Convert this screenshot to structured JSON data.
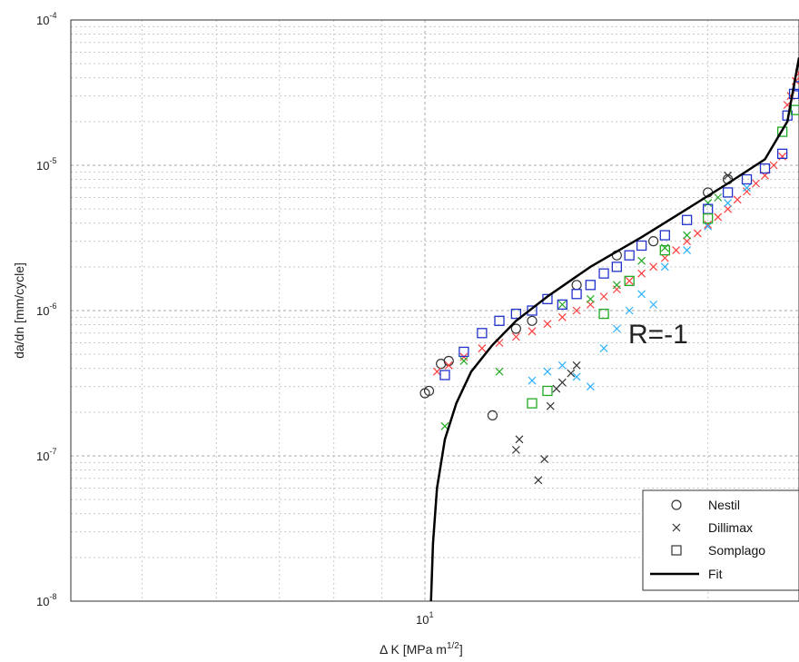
{
  "chart_data": {
    "type": "scatter",
    "title": "",
    "xlabel": "Δ K [MPa m",
    "xlabel_sup": "1/2",
    "xlabel_suffix": "]",
    "ylabel": "da/dn [mm/cycle]",
    "xscale": "log",
    "yscale": "log",
    "xlim": [
      4.2,
      25
    ],
    "ylim": [
      1e-08,
      0.0001
    ],
    "grid": true,
    "legend_position": "bottom-right",
    "x_tick_labels": [
      {
        "value": 10,
        "base": "10",
        "exp": "1"
      }
    ],
    "y_tick_labels": [
      {
        "value": 1e-08,
        "base": "10",
        "exp": "-8"
      },
      {
        "value": 1e-07,
        "base": "10",
        "exp": "-7"
      },
      {
        "value": 1e-06,
        "base": "10",
        "exp": "-6"
      },
      {
        "value": 1e-05,
        "base": "10",
        "exp": "-5"
      },
      {
        "value": 0.0001,
        "base": "10",
        "exp": "-4"
      }
    ],
    "annotation": "R=-1",
    "series": [
      {
        "name": "Nestil",
        "marker": "circle",
        "color": "#333333",
        "points": [
          [
            10.0,
            2.7e-07
          ],
          [
            10.1,
            2.8e-07
          ],
          [
            10.4,
            4.3e-07
          ],
          [
            10.6,
            4.5e-07
          ],
          [
            11.8,
            1.9e-07
          ],
          [
            12.5,
            7.5e-07
          ],
          [
            13.0,
            8.5e-07
          ],
          [
            14.5,
            1.5e-06
          ],
          [
            16.0,
            2.4e-06
          ],
          [
            17.5,
            3e-06
          ],
          [
            20.0,
            6.5e-06
          ],
          [
            21.0,
            8e-06
          ]
        ]
      },
      {
        "name": "Dillimax",
        "marker": "x",
        "color": "#333333",
        "points": [
          [
            12.5,
            1.1e-07
          ],
          [
            12.6,
            1.3e-07
          ],
          [
            13.2,
            6.8e-08
          ],
          [
            13.4,
            9.5e-08
          ],
          [
            13.6,
            2.2e-07
          ],
          [
            13.8,
            2.9e-07
          ],
          [
            14.0,
            3.2e-07
          ],
          [
            14.3,
            3.7e-07
          ],
          [
            14.5,
            4.2e-07
          ],
          [
            21.0,
            8.5e-06
          ]
        ]
      },
      {
        "name": "Dillimax",
        "marker": "x",
        "color": "#ff3b3b",
        "points": [
          [
            10.3,
            3.8e-07
          ],
          [
            10.6,
            4.2e-07
          ],
          [
            11.0,
            4.8e-07
          ],
          [
            11.5,
            5.5e-07
          ],
          [
            12.0,
            6e-07
          ],
          [
            12.5,
            6.6e-07
          ],
          [
            13.0,
            7.2e-07
          ],
          [
            13.5,
            8.1e-07
          ],
          [
            14.0,
            9e-07
          ],
          [
            14.5,
            1e-06
          ],
          [
            15.0,
            1.1e-06
          ],
          [
            15.5,
            1.25e-06
          ],
          [
            16.0,
            1.4e-06
          ],
          [
            16.5,
            1.6e-06
          ],
          [
            17.0,
            1.8e-06
          ],
          [
            17.5,
            2e-06
          ],
          [
            18.0,
            2.3e-06
          ],
          [
            18.5,
            2.6e-06
          ],
          [
            19.0,
            3e-06
          ],
          [
            19.5,
            3.4e-06
          ],
          [
            20.0,
            3.9e-06
          ],
          [
            20.5,
            4.4e-06
          ],
          [
            21.0,
            5e-06
          ],
          [
            21.5,
            5.8e-06
          ],
          [
            22.0,
            6.6e-06
          ],
          [
            22.5,
            7.5e-06
          ],
          [
            23.0,
            8.5e-06
          ],
          [
            23.5,
            1e-05
          ],
          [
            24.0,
            1.15e-05
          ],
          [
            24.3,
            2.6e-05
          ],
          [
            24.5,
            3e-05
          ],
          [
            24.8,
            3.8e-05
          ],
          [
            25.0,
            4.3e-05
          ]
        ]
      },
      {
        "name": "Dillimax",
        "marker": "x",
        "color": "#2bb0ff",
        "points": [
          [
            13.0,
            3.3e-07
          ],
          [
            13.5,
            3.8e-07
          ],
          [
            14.0,
            4.2e-07
          ],
          [
            14.5,
            3.5e-07
          ],
          [
            15.0,
            3e-07
          ],
          [
            15.5,
            5.5e-07
          ],
          [
            16.0,
            7.5e-07
          ],
          [
            16.5,
            1e-06
          ],
          [
            17.0,
            1.3e-06
          ],
          [
            17.5,
            1.1e-06
          ],
          [
            18.0,
            2e-06
          ],
          [
            19.0,
            2.6e-06
          ],
          [
            20.0,
            3.8e-06
          ],
          [
            21.0,
            5.5e-06
          ],
          [
            22.0,
            7e-06
          ]
        ]
      },
      {
        "name": "Dillimax",
        "marker": "x",
        "color": "#22aa22",
        "points": [
          [
            10.5,
            1.6e-07
          ],
          [
            11.0,
            4.5e-07
          ],
          [
            12.0,
            3.8e-07
          ],
          [
            14.0,
            1.1e-06
          ],
          [
            15.0,
            1.2e-06
          ],
          [
            16.0,
            1.5e-06
          ],
          [
            17.0,
            2.2e-06
          ],
          [
            18.0,
            2.7e-06
          ],
          [
            19.0,
            3.3e-06
          ],
          [
            20.0,
            5.5e-06
          ],
          [
            20.5,
            6e-06
          ]
        ]
      },
      {
        "name": "Somplago",
        "marker": "square",
        "color": "#2233cc",
        "points": [
          [
            10.5,
            3.6e-07
          ],
          [
            11.0,
            5.2e-07
          ],
          [
            11.5,
            7e-07
          ],
          [
            12.0,
            8.5e-07
          ],
          [
            12.5,
            9.5e-07
          ],
          [
            13.0,
            1e-06
          ],
          [
            13.5,
            1.2e-06
          ],
          [
            14.0,
            1.1e-06
          ],
          [
            14.5,
            1.3e-06
          ],
          [
            15.0,
            1.5e-06
          ],
          [
            15.5,
            1.8e-06
          ],
          [
            16.0,
            2e-06
          ],
          [
            16.5,
            2.4e-06
          ],
          [
            17.0,
            2.8e-06
          ],
          [
            18.0,
            3.3e-06
          ],
          [
            19.0,
            4.2e-06
          ],
          [
            20.0,
            5e-06
          ],
          [
            21.0,
            6.5e-06
          ],
          [
            22.0,
            8e-06
          ],
          [
            23.0,
            9.5e-06
          ],
          [
            24.0,
            1.2e-05
          ],
          [
            24.3,
            2.2e-05
          ],
          [
            24.7,
            3.1e-05
          ],
          [
            25.0,
            3.5e-05
          ]
        ]
      },
      {
        "name": "Somplago",
        "marker": "square",
        "color": "#22aa22",
        "points": [
          [
            13.0,
            2.3e-07
          ],
          [
            13.5,
            2.8e-07
          ],
          [
            15.5,
            9.5e-07
          ],
          [
            16.5,
            1.6e-06
          ],
          [
            18.0,
            2.6e-06
          ],
          [
            20.0,
            4.3e-06
          ],
          [
            24.0,
            1.7e-05
          ],
          [
            24.8,
            2.4e-05
          ]
        ]
      }
    ],
    "fit": {
      "name": "Fit",
      "color": "#000000",
      "points": [
        [
          10.15,
          1e-08
        ],
        [
          10.2,
          2.5e-08
        ],
        [
          10.3,
          6e-08
        ],
        [
          10.5,
          1.3e-07
        ],
        [
          10.8,
          2.3e-07
        ],
        [
          11.2,
          3.8e-07
        ],
        [
          11.8,
          5.8e-07
        ],
        [
          12.5,
          8.5e-07
        ],
        [
          13.5,
          1.25e-06
        ],
        [
          15.0,
          2e-06
        ],
        [
          17.0,
          3.2e-06
        ],
        [
          19.0,
          5e-06
        ],
        [
          21.0,
          7.5e-06
        ],
        [
          23.0,
          1.1e-05
        ],
        [
          24.3,
          2e-05
        ],
        [
          25.0,
          5.5e-05
        ]
      ]
    }
  },
  "legend": [
    {
      "label": "Nestil",
      "symbol": "○"
    },
    {
      "label": "Dillimax",
      "symbol": "×"
    },
    {
      "label": "Somplago",
      "symbol": "□"
    },
    {
      "label": "Fit",
      "symbol": "line"
    }
  ]
}
